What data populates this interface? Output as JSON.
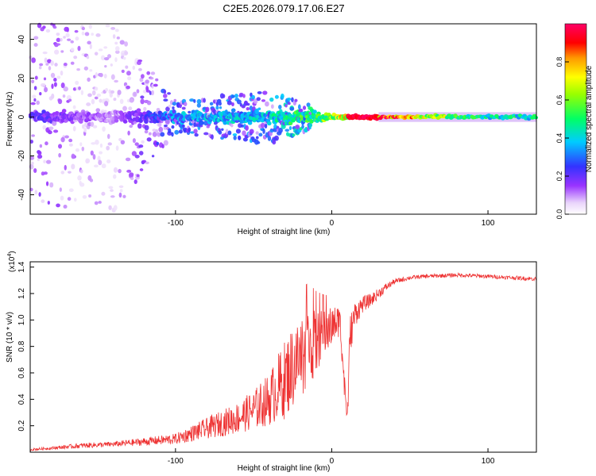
{
  "title": "C2E5.2026.079.17.06.E27",
  "chart_data": [
    {
      "type": "heatmap",
      "xlabel": "Height of straight line (km)",
      "ylabel": "Frequency (Hz)",
      "xlim": [
        -193,
        131
      ],
      "ylim": [
        -50,
        48
      ],
      "xticks": [
        -100,
        0,
        100
      ],
      "xtick_labels": [
        "-100",
        "0",
        "100"
      ],
      "yticks": [
        -40,
        -20,
        0,
        20,
        40
      ],
      "ytick_labels": [
        "-40",
        "-20",
        "0",
        "20",
        "40"
      ],
      "colorbar": {
        "label": "Normalized spectral amplitude",
        "range": [
          0.0,
          1.0
        ],
        "ticks": [
          0.0,
          0.2,
          0.4,
          0.6,
          0.8
        ],
        "tick_labels": [
          "0.0",
          "0.2",
          "0.4",
          "0.6",
          "0.8"
        ]
      },
      "description_points": [
        {
          "x": -185,
          "spread_hz": 48,
          "amp": 0.2
        },
        {
          "x": -140,
          "spread_hz": 48,
          "amp": 0.1
        },
        {
          "x": -100,
          "spread_hz": 8,
          "amp": 0.35
        },
        {
          "x": -40,
          "spread_hz": 14,
          "amp": 0.4
        },
        {
          "x": 0,
          "spread_hz": 2,
          "amp": 0.6
        },
        {
          "x": 20,
          "spread_hz": 1.5,
          "amp": 0.95
        },
        {
          "x": 100,
          "spread_hz": 2,
          "amp": 0.45
        }
      ]
    },
    {
      "type": "line",
      "xlabel": "Height of straight line (km)",
      "ylabel": "SNR (10 * v/v)",
      "yscale_label": "(x10",
      "yscale_exp": "4",
      "yscale_close": ")",
      "xlim": [
        -193,
        131
      ],
      "ylim": [
        0,
        1.44
      ],
      "xticks": [
        -100,
        0,
        100
      ],
      "xtick_labels": [
        "-100",
        "0",
        "100"
      ],
      "yticks": [
        0.2,
        0.4,
        0.6,
        0.8,
        1.0,
        1.2,
        1.4
      ],
      "ytick_labels": [
        "0.2",
        "0.4",
        "0.6",
        "0.8",
        "1.0",
        "1.2",
        "1.4"
      ],
      "color": "#ee3333",
      "series": [
        {
          "name": "SNR",
          "x": [
            -193,
            -180,
            -160,
            -140,
            -120,
            -100,
            -90,
            -80,
            -70,
            -60,
            -50,
            -40,
            -35,
            -30,
            -25,
            -20,
            -15,
            -10,
            -5,
            0,
            5,
            8,
            10,
            12,
            15,
            20,
            25,
            30,
            35,
            40,
            50,
            60,
            80,
            100,
            131
          ],
          "y": [
            0.02,
            0.03,
            0.05,
            0.06,
            0.08,
            0.1,
            0.14,
            0.18,
            0.22,
            0.26,
            0.32,
            0.4,
            0.48,
            0.55,
            0.65,
            0.72,
            0.8,
            0.82,
            0.9,
            0.95,
            1.0,
            0.6,
            0.35,
            0.9,
            1.05,
            1.12,
            1.15,
            1.2,
            1.25,
            1.29,
            1.32,
            1.33,
            1.34,
            1.33,
            1.31
          ],
          "noise": [
            0.01,
            0.01,
            0.02,
            0.02,
            0.03,
            0.04,
            0.06,
            0.08,
            0.1,
            0.12,
            0.15,
            0.2,
            0.25,
            0.3,
            0.32,
            0.32,
            0.3,
            0.25,
            0.18,
            0.15,
            0.12,
            0.2,
            0.25,
            0.15,
            0.1,
            0.06,
            0.05,
            0.04,
            0.03,
            0.02,
            0.015,
            0.015,
            0.015,
            0.015,
            0.015
          ]
        }
      ]
    }
  ]
}
